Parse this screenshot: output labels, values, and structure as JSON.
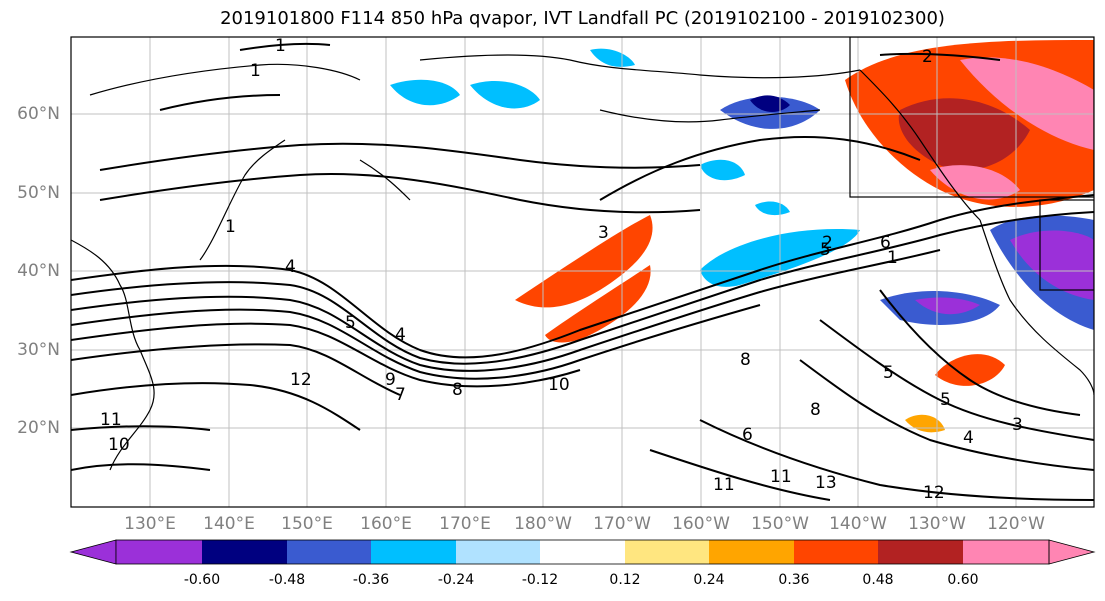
{
  "title": "2019101800 F114 850 hPa qvapor, IVT Landfall PC (2019102100 - 2019102300)",
  "lat_labels": [
    "20°N",
    "30°N",
    "40°N",
    "50°N",
    "60°N"
  ],
  "lon_labels": [
    "130°E",
    "140°E",
    "150°E",
    "160°E",
    "170°E",
    "180°W",
    "170°W",
    "160°W",
    "150°W",
    "140°W",
    "130°W",
    "120°W"
  ],
  "colorbar": {
    "ticks": [
      "-0.60",
      "-0.48",
      "-0.36",
      "-0.24",
      "-0.12",
      "0.12",
      "0.24",
      "0.36",
      "0.48",
      "0.60"
    ],
    "colors": [
      "#9b30d9",
      "#000080",
      "#3a5bd0",
      "#00bfff",
      "#b0e2ff",
      "#ffffff",
      "#ffe680",
      "#ffa500",
      "#ff4500",
      "#b22222",
      "#ff85b3"
    ]
  },
  "contour_labels": [
    "1",
    "1",
    "2",
    "1",
    "3",
    "4",
    "5",
    "4",
    "6",
    "5",
    "8",
    "7",
    "10",
    "12",
    "11",
    "10",
    "9",
    "8",
    "8",
    "6",
    "5",
    "4",
    "3",
    "5",
    "12",
    "13",
    "11",
    "11",
    "2",
    "1"
  ],
  "map_style": {
    "grid": true,
    "projection": "equirectangular"
  }
}
